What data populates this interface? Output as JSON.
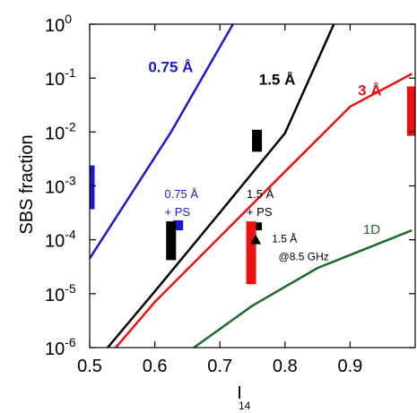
{
  "chart_data": {
    "type": "line",
    "title": "",
    "xlabel": "I",
    "xlabel_sub": "14",
    "ylabel": "SBS fraction",
    "x_scale": "linear",
    "y_scale": "log",
    "xlim": [
      0.5,
      1.0
    ],
    "ylim": [
      1e-06,
      1
    ],
    "x_ticks": [
      0.5,
      0.6,
      0.7,
      0.8,
      0.9
    ],
    "x_tick_labels": [
      "0.5",
      "0.6",
      "0.7",
      "0.8",
      "0.9"
    ],
    "y_ticks": [
      1e-06,
      1e-05,
      0.0001,
      0.001,
      0.01,
      0.1,
      1
    ],
    "y_tick_labels": [
      {
        "base": "10",
        "exp": "-6"
      },
      {
        "base": "10",
        "exp": "-5"
      },
      {
        "base": "10",
        "exp": "-4"
      },
      {
        "base": "10",
        "exp": "-3"
      },
      {
        "base": "10",
        "exp": "-2"
      },
      {
        "base": "10",
        "exp": "-1"
      },
      {
        "base": "10",
        "exp": "0"
      }
    ],
    "grid": false,
    "series": [
      {
        "name": "0.75 Å",
        "color": "#1a1acc",
        "x": [
          0.5,
          0.625,
          0.72
        ],
        "y": [
          4.5e-05,
          0.01,
          1.0
        ]
      },
      {
        "name": "1.5 Å",
        "color": "#000000",
        "x": [
          0.5,
          0.6,
          0.7,
          0.8,
          0.875
        ],
        "y": [
          4e-07,
          1.1e-05,
          0.00032,
          0.0095,
          1.0
        ]
      },
      {
        "name": "3 Å",
        "color": "#ee1111",
        "x": [
          0.54,
          0.6,
          0.7,
          0.8,
          0.9,
          0.995
        ],
        "y": [
          1e-06,
          7e-06,
          0.000114,
          0.00184,
          0.0295,
          0.12
        ]
      },
      {
        "name": "1D",
        "color": "#1d6b2a",
        "x": [
          0.66,
          0.75,
          0.85,
          0.995
        ],
        "y": [
          1e-06,
          6e-06,
          3e-05,
          0.00015
        ]
      }
    ],
    "data_bars": [
      {
        "color": "#1a1acc",
        "x": 0.5,
        "ymin": 0.00037,
        "ymax": 0.0024
      },
      {
        "color": "#1a1acc",
        "x": 0.636,
        "ymin": 0.00015,
        "ymax": 0.00023
      },
      {
        "color": "#000000",
        "x": 0.625,
        "ymin": 4.2e-05,
        "ymax": 0.00022
      },
      {
        "color": "#000000",
        "x": 0.757,
        "ymin": 0.0043,
        "ymax": 0.011
      },
      {
        "color": "#000000",
        "x": 0.757,
        "ymin": 0.00015,
        "ymax": 0.00021
      },
      {
        "color": "#ee1111",
        "x": 0.748,
        "ymin": 1.5e-05,
        "ymax": 0.00022
      },
      {
        "color": "#ee1111",
        "x": 0.995,
        "ymin": 0.0085,
        "ymax": 0.07
      }
    ],
    "markers": [
      {
        "shape": "triangle",
        "color": "#000000",
        "x": 0.755,
        "y": 0.0001
      }
    ],
    "annotations": [
      {
        "text": "0.75 Å",
        "color": "#1a1acc",
        "x": 0.59,
        "y": 0.13,
        "size": 17,
        "weight": "bold"
      },
      {
        "text": "1.5 Å",
        "color": "#000000",
        "x": 0.76,
        "y": 0.075,
        "size": 17,
        "weight": "bold"
      },
      {
        "text": "3 Å",
        "color": "#ee1111",
        "x": 0.912,
        "y": 0.048,
        "size": 17,
        "weight": "bold"
      },
      {
        "text": "1D",
        "color": "#1d6b2a",
        "x": 0.92,
        "y": 0.00013,
        "size": 15,
        "weight": "normal"
      },
      {
        "text": "0.75 Å",
        "color": "#1a1acc",
        "x": 0.615,
        "y": 0.0006,
        "size": 13,
        "weight": "normal"
      },
      {
        "text": "+ PS",
        "color": "#1a1acc",
        "x": 0.615,
        "y": 0.00028,
        "size": 13,
        "weight": "normal"
      },
      {
        "text": "1.5 Å",
        "color": "#000000",
        "x": 0.741,
        "y": 0.0006,
        "size": 13,
        "weight": "normal"
      },
      {
        "text": "+ PS",
        "color": "#000000",
        "x": 0.741,
        "y": 0.00028,
        "size": 13,
        "weight": "normal"
      },
      {
        "text": "1.5 Å",
        "color": "#000000",
        "x": 0.78,
        "y": 9e-05,
        "size": 12,
        "weight": "normal"
      },
      {
        "text": "@8.5 GHz",
        "color": "#000000",
        "x": 0.79,
        "y": 4.2e-05,
        "size": 12,
        "weight": "normal"
      }
    ]
  }
}
